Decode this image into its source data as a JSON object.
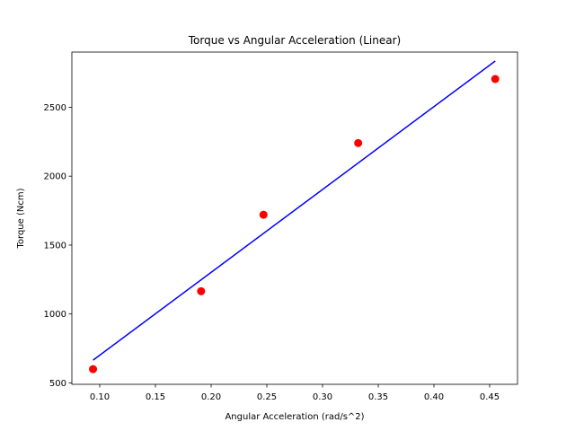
{
  "chart_data": {
    "type": "scatter",
    "title": "Torque vs Angular Acceleration (Linear)",
    "xlabel": "Angular Acceleration (rad/s^2)",
    "ylabel": "Torque (Ncm)",
    "xlim": [
      0.075,
      0.475
    ],
    "ylim": [
      490,
      2900
    ],
    "xticks": [
      0.1,
      0.15,
      0.2,
      0.25,
      0.3,
      0.35,
      0.4,
      0.45
    ],
    "xtick_labels": [
      "0.10",
      "0.15",
      "0.20",
      "0.25",
      "0.30",
      "0.35",
      "0.40",
      "0.45"
    ],
    "yticks": [
      500,
      1000,
      1500,
      2000,
      2500
    ],
    "ytick_labels": [
      "500",
      "1000",
      "1500",
      "2000",
      "2500"
    ],
    "grid": false,
    "series": [
      {
        "kind": "scatter",
        "color": "#ff0000",
        "x": [
          0.094,
          0.191,
          0.247,
          0.332,
          0.455
        ],
        "y": [
          600,
          1165,
          1720,
          2240,
          2705
        ]
      },
      {
        "kind": "line",
        "color": "#0000ff",
        "x": [
          0.094,
          0.455
        ],
        "y": [
          665,
          2835
        ]
      }
    ]
  }
}
